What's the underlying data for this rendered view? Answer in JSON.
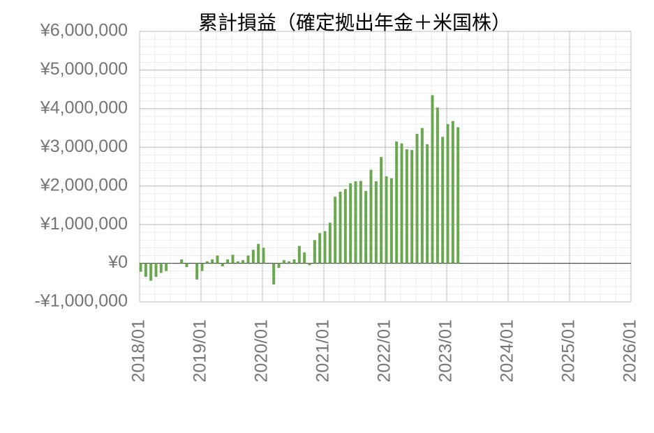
{
  "chart_data": {
    "type": "bar",
    "title": "累計損益（確定拠出年金＋米国株）",
    "x": [
      "2018/01",
      "2018/02",
      "2018/03",
      "2018/04",
      "2018/05",
      "2018/06",
      "2018/07",
      "2018/08",
      "2018/09",
      "2018/10",
      "2018/11",
      "2018/12",
      "2019/01",
      "2019/02",
      "2019/03",
      "2019/04",
      "2019/05",
      "2019/06",
      "2019/07",
      "2019/08",
      "2019/09",
      "2019/10",
      "2019/11",
      "2019/12",
      "2020/01",
      "2020/02",
      "2020/03",
      "2020/04",
      "2020/05",
      "2020/06",
      "2020/07",
      "2020/08",
      "2020/09",
      "2020/10",
      "2020/11",
      "2020/12",
      "2021/01",
      "2021/02",
      "2021/03",
      "2021/04",
      "2021/05",
      "2021/06",
      "2021/07",
      "2021/08",
      "2021/09",
      "2021/10",
      "2021/11",
      "2021/12",
      "2022/01",
      "2022/02",
      "2022/03",
      "2022/04",
      "2022/05",
      "2022/06",
      "2022/07",
      "2022/08",
      "2022/09",
      "2022/10",
      "2022/11",
      "2022/12",
      "2023/01",
      "2023/02",
      "2023/03"
    ],
    "values": [
      -220000,
      -350000,
      -450000,
      -350000,
      -250000,
      -200000,
      10000,
      0,
      100000,
      -100000,
      0,
      -420000,
      -200000,
      50000,
      100000,
      200000,
      -80000,
      100000,
      220000,
      50000,
      80000,
      200000,
      350000,
      500000,
      400000,
      0,
      -550000,
      -120000,
      80000,
      50000,
      100000,
      450000,
      280000,
      -50000,
      600000,
      780000,
      830000,
      1050000,
      1720000,
      1850000,
      1920000,
      2070000,
      2120000,
      2130000,
      1870000,
      2420000,
      2120000,
      2750000,
      2250000,
      2200000,
      3150000,
      3100000,
      2950000,
      2930000,
      3350000,
      3500000,
      3080000,
      4350000,
      4030000,
      3270000,
      3600000,
      3680000,
      3520000
    ],
    "color": "#6aa84f",
    "xlim": [
      "2018/01",
      "2026/01"
    ],
    "xticks": [
      "2018/01",
      "2019/01",
      "2020/01",
      "2021/01",
      "2022/01",
      "2023/01",
      "2024/01",
      "2025/01",
      "2026/01"
    ],
    "ylim": [
      -1000000,
      6000000
    ],
    "yticks": [
      {
        "value": -1000000,
        "label": "-¥1,000,000"
      },
      {
        "value": 0,
        "label": "¥0"
      },
      {
        "value": 1000000,
        "label": "¥1,000,000"
      },
      {
        "value": 2000000,
        "label": "¥2,000,000"
      },
      {
        "value": 3000000,
        "label": "¥3,000,000"
      },
      {
        "value": 4000000,
        "label": "¥4,000,000"
      },
      {
        "value": 5000000,
        "label": "¥5,000,000"
      },
      {
        "value": 6000000,
        "label": "¥6,000,000"
      }
    ],
    "grid": true
  }
}
